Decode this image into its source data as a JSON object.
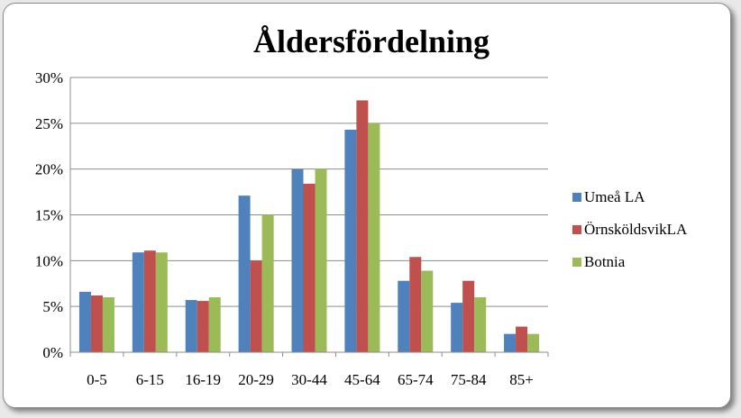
{
  "chart_data": {
    "type": "bar",
    "title": "Åldersfördelning",
    "xlabel": "",
    "ylabel": "",
    "categories": [
      "0-5",
      "6-15",
      "16-19",
      "20-29",
      "30-44",
      "45-64",
      "65-74",
      "75-84",
      "85+"
    ],
    "series": [
      {
        "name": "Umeå LA",
        "color": "#4f81bd",
        "values": [
          6.6,
          10.9,
          5.7,
          17.1,
          20.0,
          24.3,
          7.8,
          5.4,
          2.0
        ]
      },
      {
        "name": "ÖrnsköldsvikLA",
        "color": "#c0504d",
        "values": [
          6.2,
          11.1,
          5.6,
          10.0,
          18.4,
          27.5,
          10.4,
          7.8,
          2.8
        ]
      },
      {
        "name": "Botnia",
        "color": "#9bbb59",
        "values": [
          6.0,
          10.9,
          6.0,
          15.0,
          20.0,
          25.0,
          8.9,
          6.0,
          2.0
        ]
      }
    ],
    "ylim": [
      0,
      30
    ],
    "y_ticks": [
      "0%",
      "5%",
      "10%",
      "15%",
      "20%",
      "25%",
      "30%"
    ],
    "y_tick_values": [
      0,
      5,
      10,
      15,
      20,
      25,
      30
    ],
    "grid": true,
    "legend_position": "right"
  }
}
